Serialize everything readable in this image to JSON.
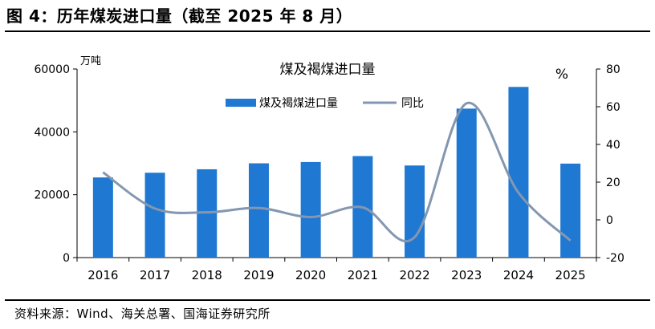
{
  "figure": {
    "title": "图 4：历年煤炭进口量（截至 2025 年 8 月）",
    "source": "资料来源：Wind、海关总署、国海证券研究所"
  },
  "chart_data": {
    "type": "bar",
    "title": "煤及褐煤进口量",
    "categories": [
      "2016",
      "2017",
      "2018",
      "2019",
      "2020",
      "2021",
      "2022",
      "2023",
      "2024",
      "2025"
    ],
    "series": [
      {
        "name": "煤及褐煤进口量",
        "type": "bar",
        "axis": "left",
        "color": "#1f78d1",
        "values": [
          25500,
          27000,
          28100,
          30000,
          30400,
          32300,
          29300,
          47400,
          54300,
          29900
        ]
      },
      {
        "name": "同比",
        "type": "line",
        "axis": "right",
        "color": "#8497b0",
        "values": [
          25.2,
          6.0,
          4.0,
          6.3,
          1.5,
          6.6,
          -9.2,
          61.8,
          14.4,
          -11.0
        ]
      }
    ],
    "y_left": {
      "label": "万吨",
      "min": 0,
      "max": 60000,
      "ticks": [
        0,
        20000,
        40000,
        60000
      ]
    },
    "y_right": {
      "label": "%",
      "min": -20,
      "max": 80,
      "ticks": [
        -20,
        0,
        20,
        40,
        60,
        80
      ]
    },
    "legend": "top-center",
    "grid": false
  }
}
